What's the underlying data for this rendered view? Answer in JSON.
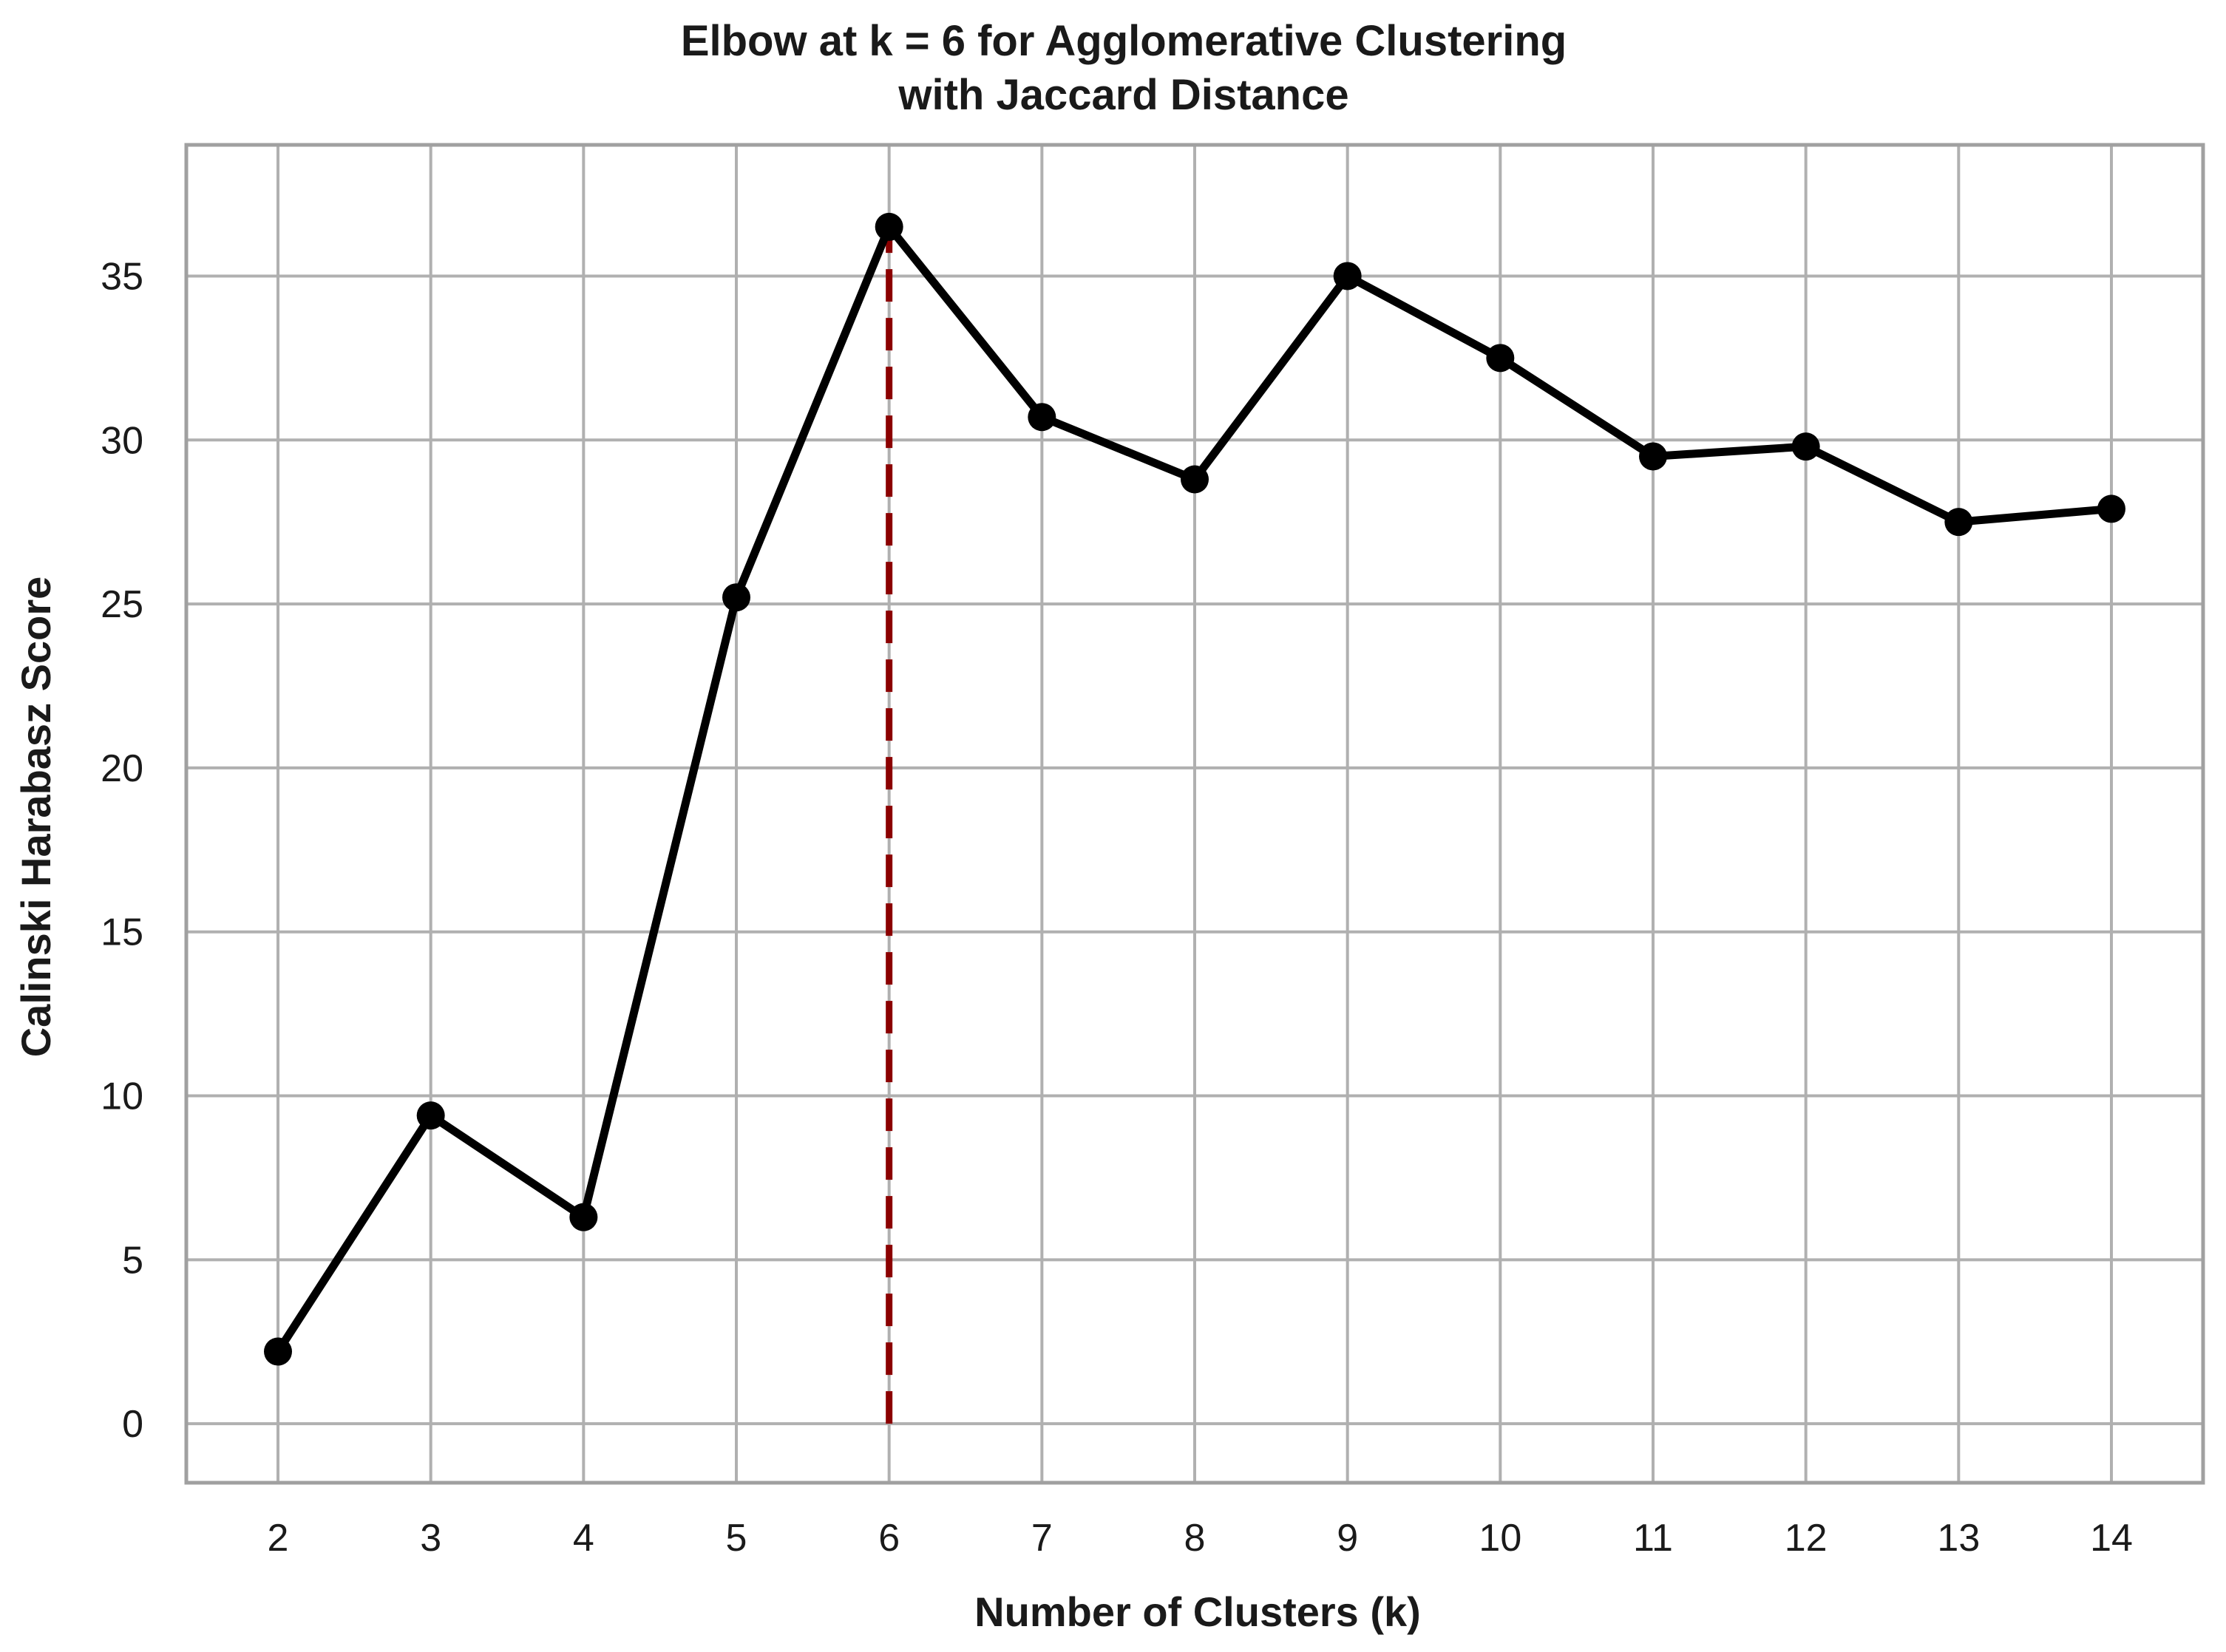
{
  "chart_data": {
    "type": "line",
    "title": [
      "Elbow at k = 6 for Agglomerative Clustering",
      "with Jaccard Distance"
    ],
    "xlabel": "Number of Clusters (k)",
    "ylabel": "Calinski Harabasz Score",
    "x": [
      2,
      3,
      4,
      5,
      6,
      7,
      8,
      9,
      10,
      11,
      12,
      13,
      14
    ],
    "series": [
      {
        "values": [
          2.2,
          9.4,
          6.3,
          25.2,
          36.5,
          30.7,
          28.8,
          35.0,
          32.5,
          29.5,
          29.8,
          27.5,
          27.9
        ],
        "color": "#000000",
        "marker": "circle"
      }
    ],
    "annotation": {
      "type": "vertical-dashed-line",
      "x": 6,
      "y_from": 0,
      "y_to": 36.5,
      "color": "#8b0000"
    },
    "x_ticks": [
      "2",
      "3",
      "4",
      "5",
      "6",
      "7",
      "8",
      "9",
      "10",
      "11",
      "12",
      "13",
      "14"
    ],
    "y_ticks": [
      "0",
      "5",
      "10",
      "15",
      "20",
      "25",
      "30",
      "35"
    ],
    "y_tick_values": [
      0,
      5,
      10,
      15,
      20,
      25,
      30,
      35
    ],
    "xlim": [
      1.4,
      14.6
    ],
    "ylim": [
      -1.8,
      39
    ],
    "grid": true,
    "grid_color": "#b0b0b0",
    "frame_color": "#a0a0a0"
  }
}
